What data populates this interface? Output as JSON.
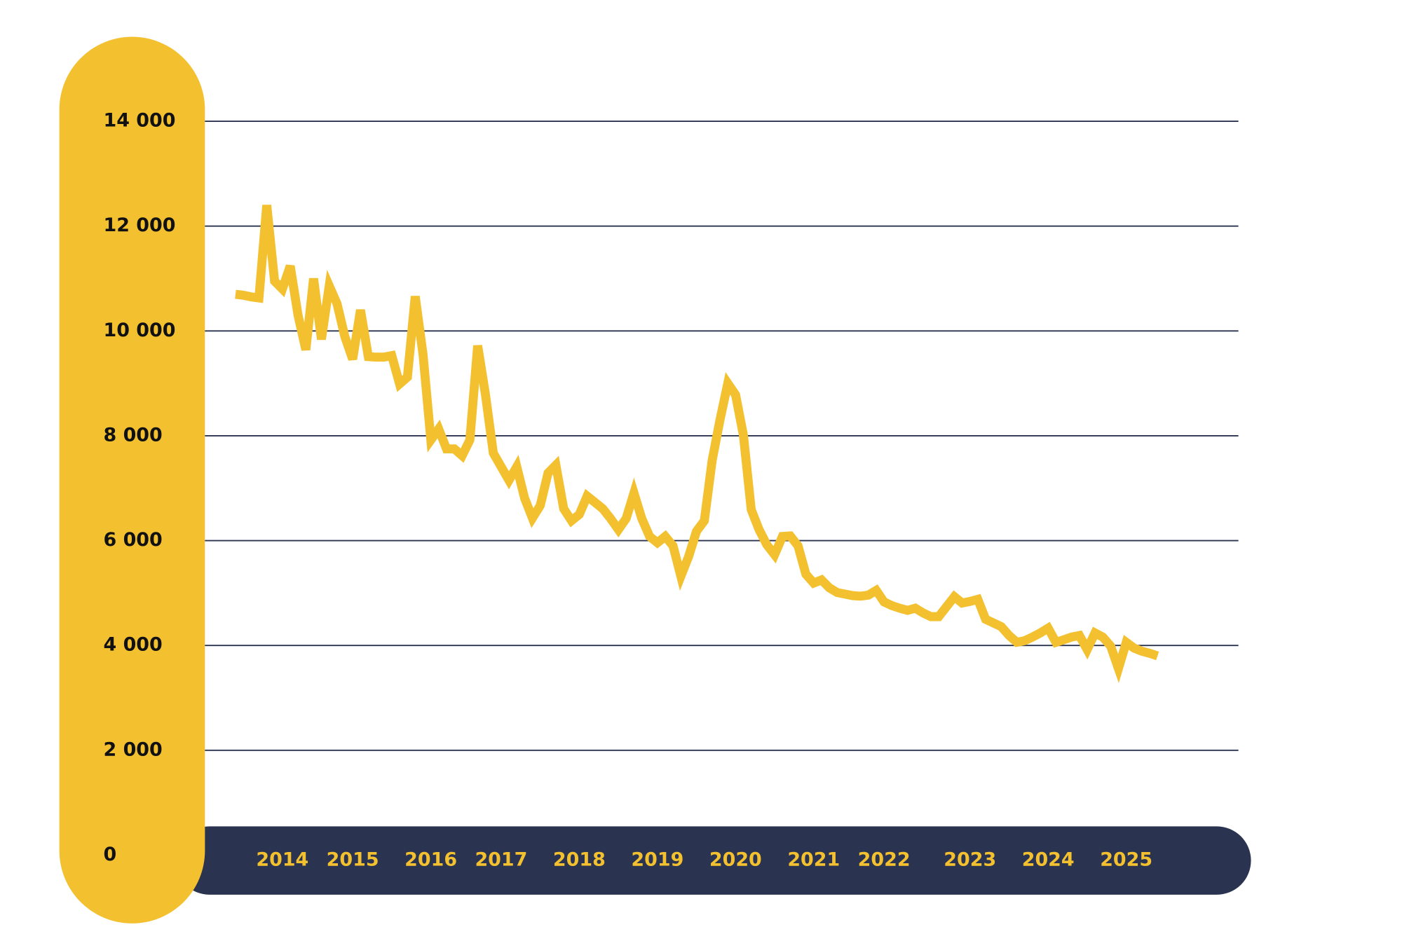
{
  "chart_data": {
    "type": "line",
    "categories": [
      null,
      null,
      null,
      null,
      null,
      null,
      "2014",
      null,
      null,
      null,
      null,
      null,
      null,
      null,
      null,
      "2015",
      null,
      null,
      null,
      null,
      null,
      null,
      null,
      null,
      null,
      "2016",
      null,
      null,
      null,
      null,
      null,
      null,
      null,
      null,
      "2017",
      null,
      null,
      null,
      null,
      null,
      null,
      null,
      null,
      null,
      "2018",
      null,
      null,
      null,
      null,
      null,
      null,
      null,
      null,
      null,
      "2019",
      null,
      null,
      null,
      null,
      null,
      null,
      null,
      null,
      null,
      "2020",
      null,
      null,
      null,
      null,
      null,
      null,
      null,
      null,
      null,
      "2021",
      null,
      null,
      null,
      null,
      null,
      null,
      null,
      null,
      "2022",
      null,
      null,
      null,
      null,
      null,
      null,
      null,
      null,
      null,
      null,
      "2023",
      null,
      null,
      null,
      null,
      null,
      null,
      null,
      null,
      null,
      "2024",
      null,
      null,
      null,
      null,
      null,
      null,
      null,
      null,
      null,
      "2025",
      null,
      null,
      null,
      null
    ],
    "values": [
      10700,
      10680,
      10650,
      10630,
      12400,
      10950,
      10800,
      11240,
      10300,
      9640,
      11000,
      9840,
      10860,
      10520,
      9890,
      9460,
      10400,
      9510,
      9500,
      9500,
      9530,
      8990,
      9120,
      10660,
      9550,
      7920,
      8130,
      7750,
      7750,
      7620,
      7920,
      9720,
      8780,
      7670,
      7410,
      7150,
      7410,
      6810,
      6430,
      6670,
      7290,
      7440,
      6610,
      6380,
      6500,
      6850,
      6730,
      6610,
      6420,
      6210,
      6420,
      6910,
      6420,
      6080,
      5960,
      6080,
      5900,
      5320,
      5700,
      6180,
      6380,
      7530,
      8300,
      9000,
      8780,
      8010,
      6590,
      6210,
      5920,
      5730,
      6080,
      6090,
      5900,
      5360,
      5190,
      5250,
      5100,
      5010,
      4980,
      4950,
      4940,
      4960,
      5050,
      4830,
      4760,
      4710,
      4670,
      4710,
      4620,
      4550,
      4550,
      4740,
      4930,
      4810,
      4840,
      4880,
      4500,
      4430,
      4360,
      4190,
      4060,
      4090,
      4160,
      4240,
      4330,
      4060,
      4110,
      4160,
      4190,
      3920,
      4240,
      4160,
      3990,
      3560,
      4060,
      3950,
      3890,
      3850,
      3800
    ],
    "color": "#f3c130",
    "ylim": [
      0,
      14000
    ],
    "yticks": [
      0,
      {
        "value": 2000,
        "label": "2 000"
      },
      {
        "value": 4000,
        "label": "4 000"
      },
      {
        "value": 6000,
        "label": "6 000"
      },
      {
        "value": 8000,
        "label": "8 000"
      },
      {
        "value": 10000,
        "label": "10 000"
      },
      {
        "value": 12000,
        "label": "12 000"
      },
      {
        "value": 14000,
        "label": "14 000"
      }
    ],
    "grid": true
  }
}
